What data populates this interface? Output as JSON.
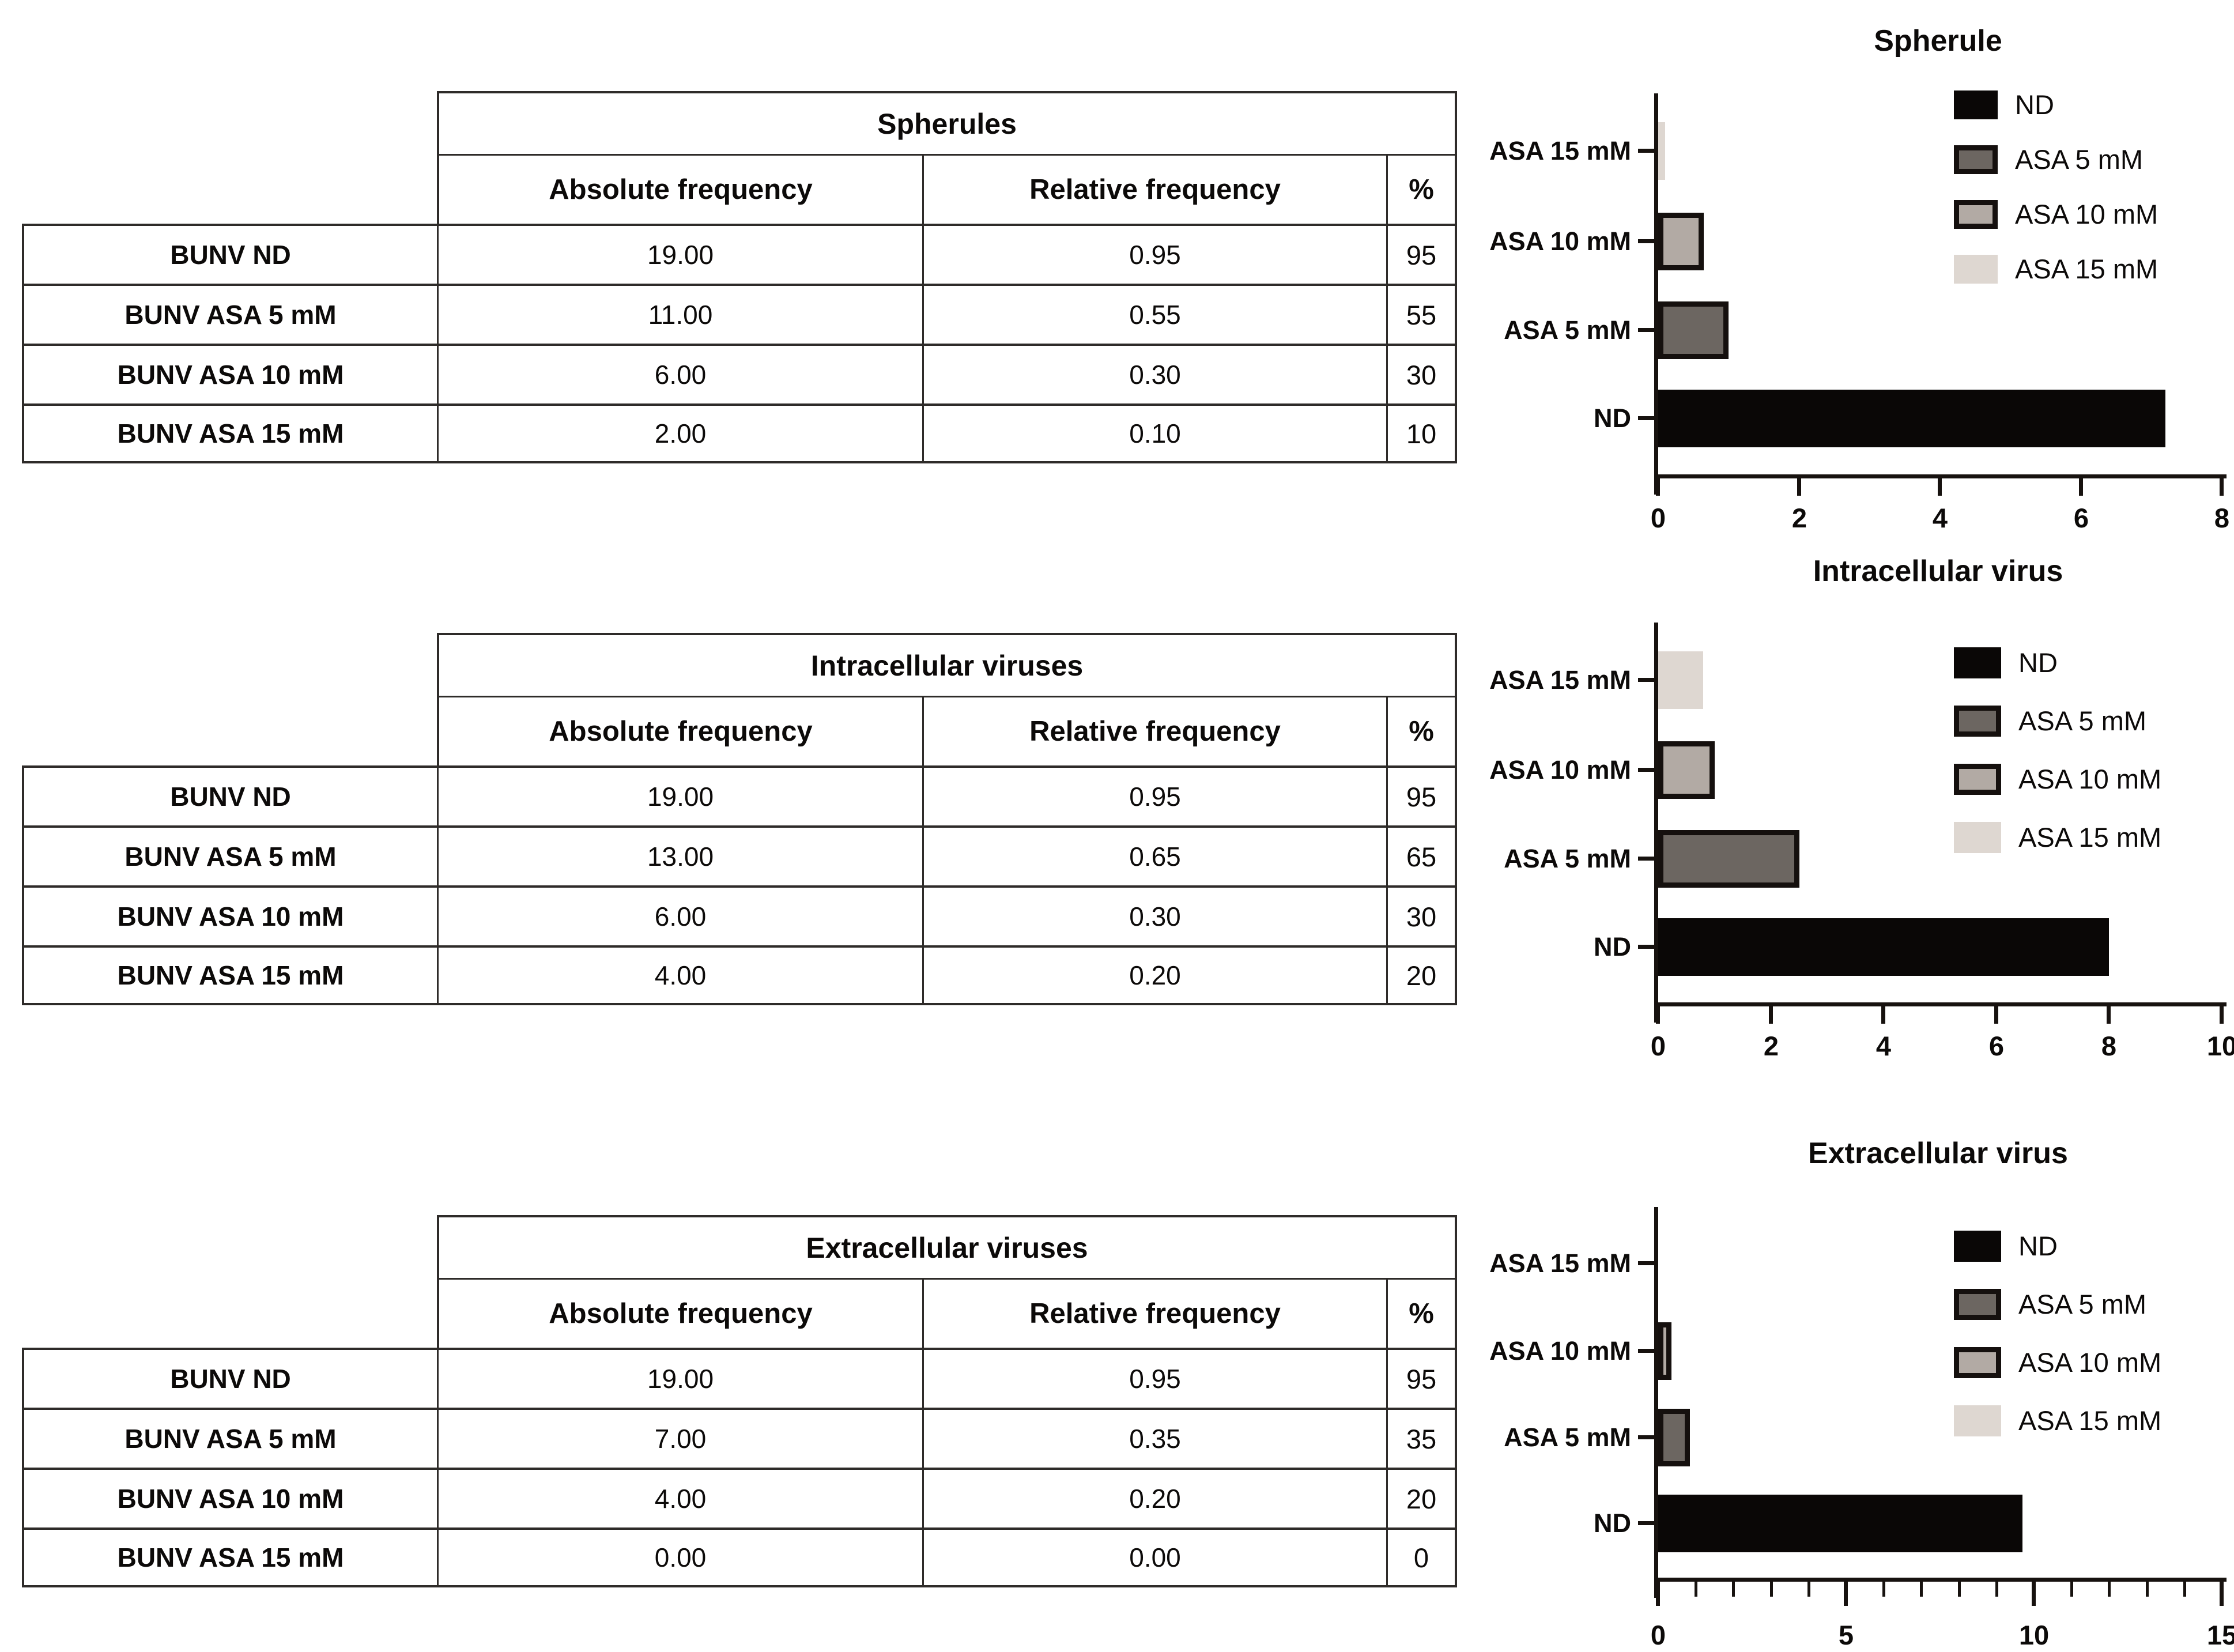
{
  "panels": [
    {
      "table": {
        "title": "Spherules",
        "columns": [
          "Absolute frequency",
          "Relative frequency",
          "%"
        ],
        "rows": [
          [
            "BUNV ND",
            "19.00",
            "0.95",
            "95"
          ],
          [
            "BUNV ASA 5 mM",
            "11.00",
            "0.55",
            "55"
          ],
          [
            "BUNV ASA 10 mM",
            "6.00",
            "0.30",
            "30"
          ],
          [
            "BUNV ASA 15 mM",
            "2.00",
            "0.10",
            "10"
          ]
        ]
      }
    },
    {
      "table": {
        "title": "Intracellular viruses",
        "columns": [
          "Absolute frequency",
          "Relative frequency",
          "%"
        ],
        "rows": [
          [
            "BUNV ND",
            "19.00",
            "0.95",
            "95"
          ],
          [
            "BUNV ASA 5 mM",
            "13.00",
            "0.65",
            "65"
          ],
          [
            "BUNV ASA 10 mM",
            "6.00",
            "0.30",
            "30"
          ],
          [
            "BUNV ASA 15 mM",
            "4.00",
            "0.20",
            "20"
          ]
        ]
      }
    },
    {
      "table": {
        "title": "Extracellular viruses",
        "columns": [
          "Absolute frequency",
          "Relative frequency",
          "%"
        ],
        "rows": [
          [
            "BUNV ND",
            "19.00",
            "0.95",
            "95"
          ],
          [
            "BUNV ASA 5 mM",
            "7.00",
            "0.35",
            "35"
          ],
          [
            "BUNV ASA 10 mM",
            "4.00",
            "0.20",
            "20"
          ],
          [
            "BUNV ASA 15 mM",
            "0.00",
            "0.00",
            "0"
          ]
        ]
      }
    }
  ],
  "series": [
    {
      "name": "ND",
      "fill": "#0a0706",
      "outline": null
    },
    {
      "name": "ASA 5 mM",
      "fill": "#6c6661",
      "outline": "#15100e"
    },
    {
      "name": "ASA 10 mM",
      "fill": "#b2aaa4",
      "outline": "#15100e"
    },
    {
      "name": "ASA 15 mM",
      "fill": "#ded7d1",
      "outline": null
    }
  ],
  "chart_data": [
    {
      "type": "bar",
      "orientation": "horizontal",
      "title": "Spherule",
      "categories": [
        "ND",
        "ASA 5 mM",
        "ASA 10 mM",
        "ASA 15 mM"
      ],
      "categories_order": "bottom-to-top",
      "values": [
        7.2,
        1.0,
        0.65,
        0.1
      ],
      "xlim": [
        0,
        8
      ],
      "xticks": [
        0,
        2,
        4,
        6,
        8
      ],
      "minor_tick_step": null,
      "xlabel": "",
      "ylabel": "",
      "grid": false,
      "legend": [
        "ND",
        "ASA 5 mM",
        "ASA 10 mM",
        "ASA 15 mM"
      ],
      "legend_position": "top-right"
    },
    {
      "type": "bar",
      "orientation": "horizontal",
      "title": "Intracellular virus",
      "categories": [
        "ND",
        "ASA 5 mM",
        "ASA 10 mM",
        "ASA 15 mM"
      ],
      "categories_order": "bottom-to-top",
      "values": [
        8.0,
        2.5,
        1.0,
        0.8
      ],
      "xlim": [
        0,
        10
      ],
      "xticks": [
        0,
        2,
        4,
        6,
        8,
        10
      ],
      "minor_tick_step": null,
      "xlabel": "",
      "ylabel": "",
      "grid": false,
      "legend": [
        "ND",
        "ASA 5 mM",
        "ASA 10 mM",
        "ASA 15 mM"
      ],
      "legend_position": "top-right"
    },
    {
      "type": "bar",
      "orientation": "horizontal",
      "title": "Extracellular virus",
      "categories": [
        "ND",
        "ASA 5 mM",
        "ASA 10 mM",
        "ASA 15 mM"
      ],
      "categories_order": "bottom-to-top",
      "values": [
        9.7,
        0.85,
        0.35,
        0.0
      ],
      "xlim": [
        0,
        15
      ],
      "xticks": [
        0,
        5,
        10,
        15
      ],
      "minor_tick_step": 1,
      "xlabel": "",
      "ylabel": "",
      "grid": false,
      "legend": [
        "ND",
        "ASA 5 mM",
        "ASA 10 mM",
        "ASA 15 mM"
      ],
      "legend_position": "top-right"
    }
  ],
  "colors": {
    "axis": "#17120f",
    "table_line": "#2e2b29",
    "text": "#0c0a09",
    "background": "#ffffff"
  }
}
